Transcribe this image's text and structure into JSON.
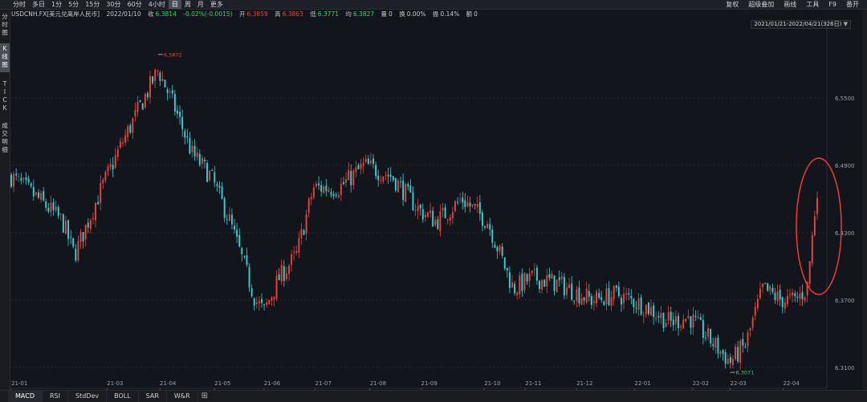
{
  "toolbar": {
    "periods": [
      "分时",
      "多日",
      "1分",
      "5分",
      "15分",
      "30分",
      "60分",
      "4小时",
      "日",
      "周",
      "月",
      "更多"
    ],
    "active_period": "日",
    "right_menu": [
      "复权",
      "超级叠加",
      "画线",
      "工具",
      "F9",
      "番开"
    ]
  },
  "quote": {
    "symbol": "USDCNH.FX[美元兑离岸人民币]",
    "date": "2022/01/10",
    "close_label": "收",
    "close": "6.3814",
    "change": "-0.02%(-0.0015)",
    "open_label": "开",
    "open": "6.3859",
    "high_label": "高",
    "high": "6.3863",
    "low_label": "低",
    "low": "6.3771",
    "avg_label": "均",
    "avg": "6.3827",
    "volume_label": "量",
    "volume": "0",
    "turnover_label": "换",
    "turnover": "0.00%",
    "amplitude_label": "振",
    "amplitude": "0.14%",
    "amount_label": "额",
    "amount": "0"
  },
  "side_tabs": [
    "分时图",
    "K线图",
    "TICK",
    "成交明细"
  ],
  "range_label": "2021/01/21-2022/04/21(326日)",
  "bottom_tabs": [
    "MACD",
    "RSI",
    "StdDev",
    "BOLL",
    "SAR",
    "W&R"
  ],
  "colors": {
    "up": "#e8443a",
    "down": "#2fd3d6",
    "background": "#13151c",
    "annotation": "#ff3b30"
  },
  "chart_data": {
    "type": "candlestick",
    "ylim": [
      6.3,
      6.61
    ],
    "yticks": [
      6.55,
      6.49,
      6.43,
      6.37,
      6.31
    ],
    "x_ticks": [
      "21-01",
      "21-03",
      "21-04",
      "21-05",
      "21-06",
      "21-07",
      "21-08",
      "21-09",
      "21-10",
      "21-11",
      "21-12",
      "22-01",
      "22-02",
      "22-03",
      "22-04"
    ],
    "max_marker": {
      "value": "6.5872",
      "date": "2021-03-31"
    },
    "min_marker": {
      "value": "6.3071",
      "date": "2022-03-01"
    },
    "anchors": [
      [
        "2021-01-04",
        6.48
      ],
      [
        "2021-01-20",
        6.46
      ],
      [
        "2021-02-03",
        6.44
      ],
      [
        "2021-02-10",
        6.41
      ],
      [
        "2021-02-26",
        6.47
      ],
      [
        "2021-03-10",
        6.51
      ],
      [
        "2021-03-31",
        6.575
      ],
      [
        "2021-04-10",
        6.54
      ],
      [
        "2021-04-20",
        6.5
      ],
      [
        "2021-05-01",
        6.48
      ],
      [
        "2021-05-12",
        6.44
      ],
      [
        "2021-05-27",
        6.37
      ],
      [
        "2021-06-01",
        6.36
      ],
      [
        "2021-06-10",
        6.39
      ],
      [
        "2021-06-20",
        6.41
      ],
      [
        "2021-06-30",
        6.47
      ],
      [
        "2021-07-15",
        6.47
      ],
      [
        "2021-07-30",
        6.49
      ],
      [
        "2021-08-15",
        6.48
      ],
      [
        "2021-08-31",
        6.45
      ],
      [
        "2021-09-10",
        6.44
      ],
      [
        "2021-09-25",
        6.46
      ],
      [
        "2021-10-10",
        6.44
      ],
      [
        "2021-10-25",
        6.38
      ],
      [
        "2021-11-05",
        6.39
      ],
      [
        "2021-11-20",
        6.385
      ],
      [
        "2021-12-10",
        6.37
      ],
      [
        "2021-12-25",
        6.375
      ],
      [
        "2022-01-10",
        6.365
      ],
      [
        "2022-01-25",
        6.35
      ],
      [
        "2022-02-05",
        6.355
      ],
      [
        "2022-02-20",
        6.33
      ],
      [
        "2022-03-01",
        6.315
      ],
      [
        "2022-03-10",
        6.33
      ],
      [
        "2022-03-20",
        6.38
      ],
      [
        "2022-03-31",
        6.37
      ],
      [
        "2022-04-08",
        6.37
      ],
      [
        "2022-04-15",
        6.38
      ],
      [
        "2022-04-21",
        6.47
      ]
    ],
    "count": 326
  }
}
